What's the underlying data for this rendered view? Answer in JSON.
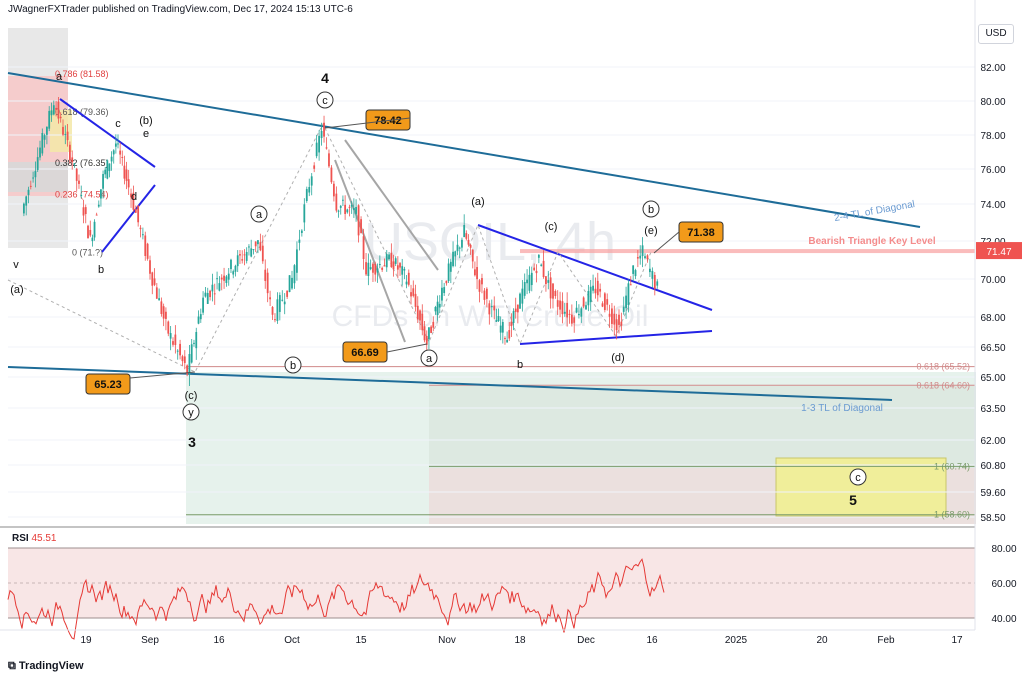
{
  "header": {
    "author": "JWagnerFXTrader published on TradingView.com, Dec 17, 2024 15:13 UTC-6"
  },
  "currency": "USD",
  "footer": {
    "brand": "TradingView"
  },
  "watermark": {
    "symbol": "USOIL, 4h",
    "description": "CFDs on WTI Crude Oil"
  },
  "rsi": {
    "label": "RSI",
    "value": "45.51",
    "ticks": [
      "80.00",
      "60.00",
      "40.00"
    ]
  },
  "current_price": "71.47",
  "colors": {
    "candle_up": "#26a69a",
    "candle_down": "#ef5350",
    "trendline": "#1e6c98",
    "triangle": "#2424e6",
    "key_level": "#f8a0a0",
    "box_orange": "#f29a1a",
    "target_zone": "#f0ee9a"
  },
  "chart_data": {
    "type": "line",
    "title": "",
    "xlabel": "",
    "ylabel": "",
    "y_unit": "USD",
    "ylim": [
      57.5,
      84
    ],
    "y_ticks": [
      "82.00",
      "80.00",
      "78.00",
      "76.00",
      "74.00",
      "72.00",
      "70.00",
      "68.00",
      "66.50",
      "65.00",
      "63.50",
      "62.00",
      "60.80",
      "59.60",
      "58.50"
    ],
    "x_ticks": [
      "19",
      "Sep",
      "16",
      "Oct",
      "15",
      "Nov",
      "18",
      "Dec",
      "16",
      "2025",
      "20",
      "Feb",
      "17"
    ],
    "series": [
      {
        "values": [
          {
            "x": "2024-08-05",
            "y": 73.5
          },
          {
            "x": "2024-08-12",
            "y": 80.0
          },
          {
            "x": "2024-08-16",
            "y": 76.5
          },
          {
            "x": "2024-08-20",
            "y": 72.0
          },
          {
            "x": "2024-08-23",
            "y": 75.5
          },
          {
            "x": "2024-08-26",
            "y": 77.5
          },
          {
            "x": "2024-08-29",
            "y": 75.0
          },
          {
            "x": "2024-09-03",
            "y": 70.5
          },
          {
            "x": "2024-09-06",
            "y": 67.5
          },
          {
            "x": "2024-09-10",
            "y": 65.23
          },
          {
            "x": "2024-09-13",
            "y": 69.0
          },
          {
            "x": "2024-09-18",
            "y": 70.5
          },
          {
            "x": "2024-09-24",
            "y": 72.0
          },
          {
            "x": "2024-09-27",
            "y": 68.0
          },
          {
            "x": "2024-10-01",
            "y": 70.0
          },
          {
            "x": "2024-10-04",
            "y": 74.5
          },
          {
            "x": "2024-10-07",
            "y": 78.42
          },
          {
            "x": "2024-10-10",
            "y": 74.0
          },
          {
            "x": "2024-10-14",
            "y": 73.5
          },
          {
            "x": "2024-10-16",
            "y": 70.5
          },
          {
            "x": "2024-10-21",
            "y": 71.0
          },
          {
            "x": "2024-10-24",
            "y": 70.0
          },
          {
            "x": "2024-10-28",
            "y": 66.69
          },
          {
            "x": "2024-10-31",
            "y": 69.5
          },
          {
            "x": "2024-11-05",
            "y": 72.5
          },
          {
            "x": "2024-11-08",
            "y": 70.0
          },
          {
            "x": "2024-11-12",
            "y": 68.0
          },
          {
            "x": "2024-11-15",
            "y": 67.0
          },
          {
            "x": "2024-11-18",
            "y": 69.0
          },
          {
            "x": "2024-11-22",
            "y": 71.0
          },
          {
            "x": "2024-11-25",
            "y": 69.0
          },
          {
            "x": "2024-11-29",
            "y": 68.0
          },
          {
            "x": "2024-12-04",
            "y": 69.5
          },
          {
            "x": "2024-12-09",
            "y": 67.5
          },
          {
            "x": "2024-12-12",
            "y": 70.5
          },
          {
            "x": "2024-12-14",
            "y": 71.38
          },
          {
            "x": "2024-12-17",
            "y": 69.5
          }
        ]
      }
    ],
    "annotations": {
      "price_boxes": [
        "78.42",
        "66.69",
        "65.23",
        "71.38"
      ],
      "key_level_label": "Bearish Triangle Key Level",
      "trendline_upper_label": "2-4 TL of Diagonal",
      "trendline_lower_label": "1-3 TL of Diagonal",
      "fib_left": [
        "0.786 (81.58)",
        "0.618 (79.36)",
        "0.382 (76.35)",
        "0.236 (74.54)",
        "0 (71.?)"
      ],
      "fib_right": [
        "0.618 (65.52)",
        "0.618 (64.60)",
        "1 (60.74)",
        "1 (58.60)"
      ],
      "waves": [
        "a",
        "c",
        "(b)",
        "e",
        "d",
        "b",
        "v",
        "(a)",
        "(c)",
        "y",
        "3",
        "a",
        "c",
        "4",
        "b",
        "(a)",
        "(c)",
        "b",
        "(e)",
        "(b)",
        "(d)",
        "a",
        "c",
        "5"
      ]
    }
  }
}
